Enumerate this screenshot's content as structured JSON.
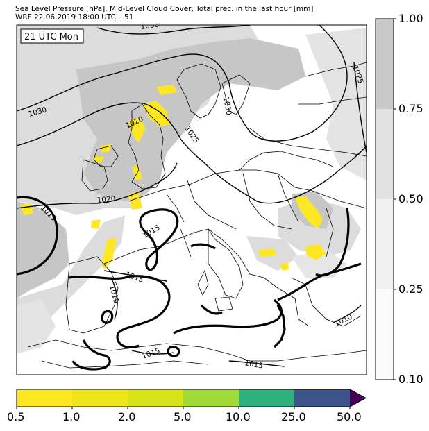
{
  "header": {
    "title_line1": "Sea Level Pressure [hPa], Mid-Level Cloud Cover, Total prec. in the last hour [mm]",
    "title_line2": "WRF 22.06.2019 18:00 UTC +51"
  },
  "map": {
    "valid_time_label": "21 UTC Mon",
    "isobar_labels": [
      "1030",
      "1030",
      "1020",
      "1030",
      "1025",
      "1025",
      "1020",
      "1015",
      "1015",
      "1015",
      "1015",
      "1015",
      "1015",
      "1010",
      "1015"
    ],
    "colors": {
      "coast": "#000000",
      "cloud_dark": "#c3c3c3",
      "cloud_light": "#dcdcdc",
      "precip": "#fde725"
    }
  },
  "cloud_colorbar": {
    "ticks": [
      "1.00",
      "0.75",
      "0.50",
      "0.25",
      "0.10"
    ],
    "colors": [
      "#c8c8c8",
      "#e2e2e2",
      "#f0f0f0",
      "#fafafa"
    ]
  },
  "precip_colorbar": {
    "ticks": [
      "0.5",
      "1.0",
      "2.0",
      "5.0",
      "10.0",
      "25.0",
      "50.0"
    ],
    "colors": [
      "#fde725",
      "#efe51c",
      "#d8e219",
      "#a0da39",
      "#2db27d",
      "#3b528b",
      "#440154"
    ]
  }
}
